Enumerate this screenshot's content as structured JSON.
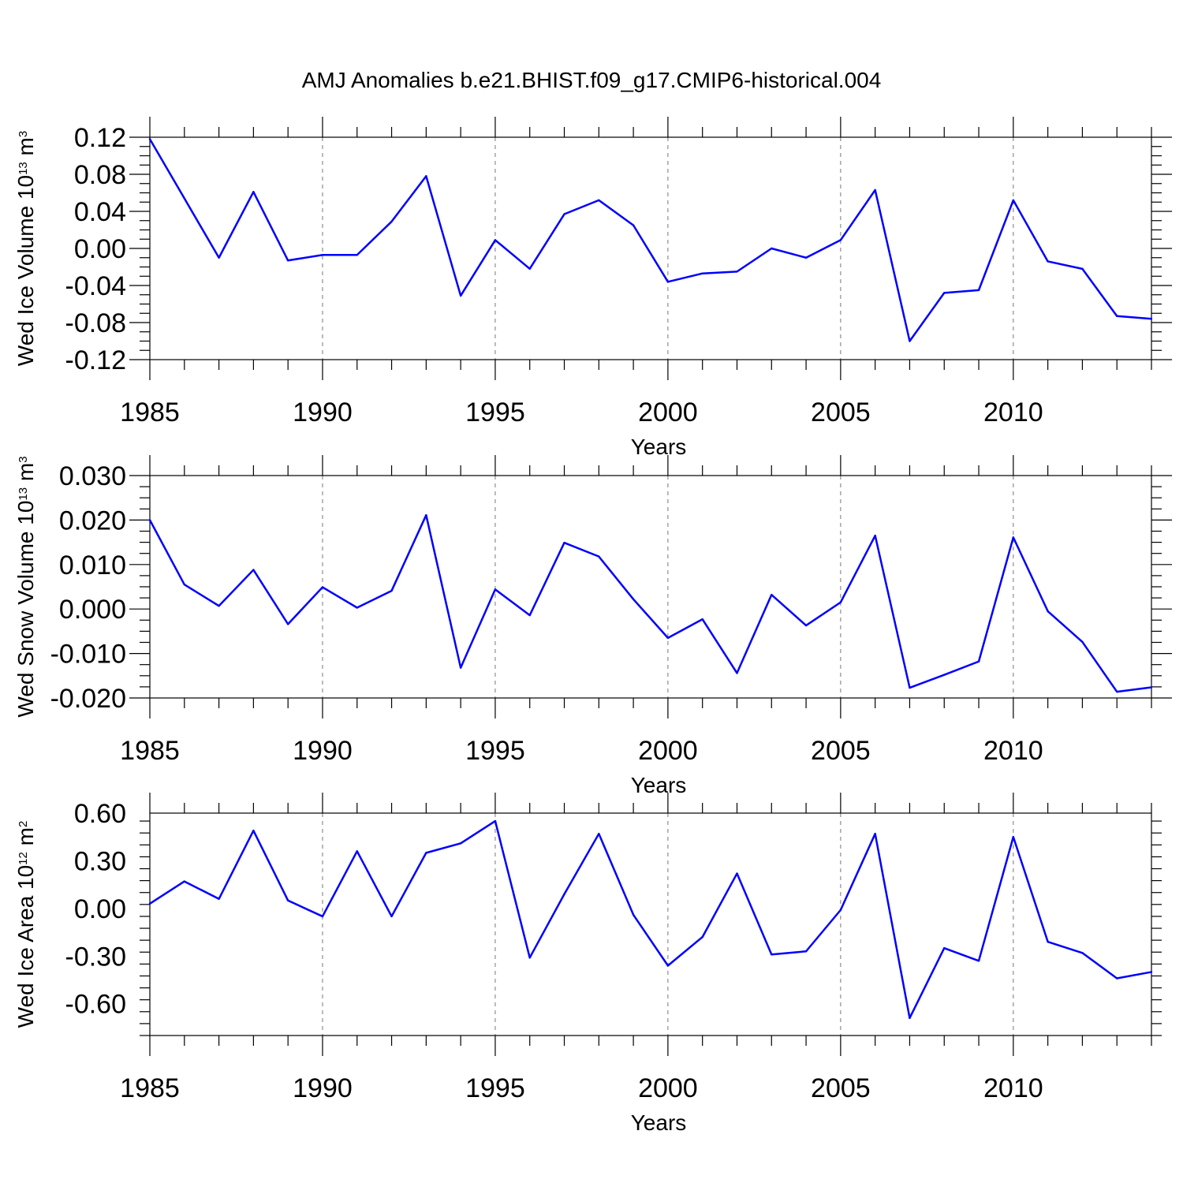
{
  "title": "AMJ Anomalies b.e21.BHIST.f09_g17.CMIP6-historical.004",
  "colors": {
    "line": "#0000ff",
    "axis": "#000000",
    "grid": "#777777"
  },
  "chart_data": [
    {
      "type": "line",
      "xlabel": "Years",
      "ylabel": {
        "prefix": "Wed Ice Volume 10",
        "exponent": "13",
        "unit": " m",
        "unit_exponent": "3"
      },
      "xlim": [
        1985,
        2014
      ],
      "ylim": [
        -0.12,
        0.12
      ],
      "x_ticks": [
        "1985",
        "1990",
        "1995",
        "2000",
        "2005",
        "2010"
      ],
      "y_ticks": [
        "0.12",
        "0.08",
        "0.04",
        "0.00",
        "-0.04",
        "-0.08",
        "-0.12"
      ],
      "grid": "vertical dashed at major x ticks",
      "x": [
        1985,
        1986,
        1987,
        1988,
        1989,
        1990,
        1991,
        1992,
        1993,
        1994,
        1995,
        1996,
        1997,
        1998,
        1999,
        2000,
        2001,
        2002,
        2003,
        2004,
        2005,
        2006,
        2007,
        2008,
        2009,
        2010,
        2011,
        2012,
        2013,
        2014
      ],
      "series": [
        {
          "values": [
            0.118,
            0.054,
            -0.01,
            0.061,
            -0.013,
            -0.007,
            -0.007,
            0.029,
            0.078,
            -0.051,
            0.009,
            -0.022,
            0.037,
            0.052,
            0.025,
            -0.036,
            -0.027,
            -0.025,
            0.0,
            -0.01,
            0.009,
            0.063,
            -0.1,
            -0.048,
            -0.045,
            0.052,
            -0.014,
            -0.022,
            -0.073,
            -0.076
          ]
        }
      ]
    },
    {
      "type": "line",
      "xlabel": "Years",
      "ylabel": {
        "prefix": "Wed Snow Volume 10",
        "exponent": "13",
        "unit": " m",
        "unit_exponent": "3"
      },
      "xlim": [
        1985,
        2014
      ],
      "ylim": [
        -0.02,
        0.03
      ],
      "x_ticks": [
        "1985",
        "1990",
        "1995",
        "2000",
        "2005",
        "2010"
      ],
      "y_ticks": [
        "0.030",
        "0.020",
        "0.010",
        "0.000",
        "-0.010",
        "-0.020"
      ],
      "grid": "vertical dashed at major x ticks",
      "x": [
        1985,
        1986,
        1987,
        1988,
        1989,
        1990,
        1991,
        1992,
        1993,
        1994,
        1995,
        1996,
        1997,
        1998,
        1999,
        2000,
        2001,
        2002,
        2003,
        2004,
        2005,
        2006,
        2007,
        2008,
        2009,
        2010,
        2011,
        2012,
        2013,
        2014
      ],
      "series": [
        {
          "values": [
            0.02,
            0.0055,
            0.0007,
            0.0088,
            -0.0034,
            0.0049,
            0.0003,
            0.0041,
            0.0211,
            -0.0132,
            0.0044,
            -0.0014,
            0.0149,
            0.0118,
            0.0022,
            -0.0065,
            -0.0023,
            -0.0144,
            0.0032,
            -0.0037,
            0.0015,
            0.0165,
            -0.0177,
            -0.0148,
            -0.0118,
            0.0161,
            -0.0005,
            -0.0074,
            -0.0186,
            -0.0176
          ]
        }
      ]
    },
    {
      "type": "line",
      "xlabel": "Years",
      "ylabel": {
        "prefix": "Wed Ice Area 10",
        "exponent": "12",
        "unit": " m",
        "unit_exponent": "2"
      },
      "xlim": [
        1985,
        2014
      ],
      "ylim": [
        -0.8,
        0.6
      ],
      "x_ticks": [
        "1985",
        "1990",
        "1995",
        "2000",
        "2005",
        "2010"
      ],
      "y_ticks": [
        "0.60",
        "0.30",
        "0.00",
        "-0.30",
        "-0.60"
      ],
      "grid": "vertical dashed at major x ticks",
      "x": [
        1985,
        1986,
        1987,
        1988,
        1989,
        1990,
        1991,
        1992,
        1993,
        1994,
        1995,
        1996,
        1997,
        1998,
        1999,
        2000,
        2001,
        2002,
        2003,
        2004,
        2005,
        2006,
        2007,
        2008,
        2009,
        2010,
        2011,
        2012,
        2013,
        2014
      ],
      "series": [
        {
          "values": [
            0.03,
            0.17,
            0.06,
            0.49,
            0.05,
            -0.05,
            0.36,
            -0.05,
            0.35,
            0.41,
            0.55,
            -0.31,
            0.09,
            0.47,
            -0.04,
            -0.36,
            -0.18,
            0.22,
            -0.29,
            -0.27,
            -0.01,
            0.47,
            -0.69,
            -0.25,
            -0.33,
            0.45,
            -0.21,
            -0.28,
            -0.44,
            -0.4
          ]
        }
      ]
    }
  ]
}
